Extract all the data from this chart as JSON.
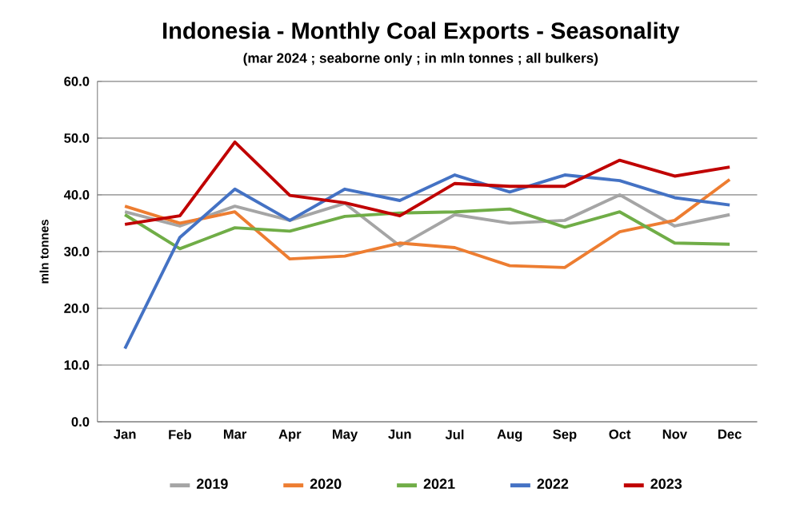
{
  "chart_data": {
    "type": "line",
    "title": "Indonesia - Monthly Coal Exports - Seasonality",
    "subtitle": "(mar 2024 ; seaborne only ; in mln tonnes ; all bulkers)",
    "ylabel": "mln tonnes",
    "categories": [
      "Jan",
      "Feb",
      "Mar",
      "Apr",
      "May",
      "Jun",
      "Jul",
      "Aug",
      "Sep",
      "Oct",
      "Nov",
      "Dec"
    ],
    "series": [
      {
        "name": "2019",
        "color": "#a5a5a5",
        "values": [
          37,
          34.5,
          38,
          35.5,
          38.5,
          31,
          36.5,
          35,
          35.5,
          40,
          34.5,
          36.5
        ]
      },
      {
        "name": "2020",
        "color": "#ed7d31",
        "values": [
          38,
          35,
          37,
          28.7,
          29.2,
          31.5,
          30.7,
          27.5,
          27.2,
          33.5,
          35.5,
          42.7
        ]
      },
      {
        "name": "2021",
        "color": "#70ad47",
        "values": [
          36.5,
          30.5,
          34.2,
          33.6,
          36.2,
          36.8,
          37,
          37.5,
          34.3,
          37,
          31.5,
          31.3
        ]
      },
      {
        "name": "2022",
        "color": "#4472c4",
        "values": [
          12.9,
          32.5,
          41,
          35.5,
          41,
          39,
          43.5,
          40.5,
          43.5,
          42.5,
          39.5,
          38.2
        ]
      },
      {
        "name": "2023",
        "color": "#c00000",
        "values": [
          34.8,
          36.3,
          49.3,
          39.9,
          38.6,
          36.3,
          42,
          41.5,
          41.5,
          46.1,
          43.3,
          44.9
        ]
      }
    ],
    "ylim": [
      0,
      60
    ],
    "yticks": [
      {
        "value": 0,
        "label": "0.0"
      },
      {
        "value": 10,
        "label": "10.0"
      },
      {
        "value": 20,
        "label": "20.0"
      },
      {
        "value": 30,
        "label": "30.0"
      },
      {
        "value": 40,
        "label": "40.0"
      },
      {
        "value": 50,
        "label": "50.0"
      },
      {
        "value": 60,
        "label": "60.0"
      }
    ],
    "grid": "y",
    "legend": "bottom",
    "marker": "none",
    "line_style": "solid"
  }
}
